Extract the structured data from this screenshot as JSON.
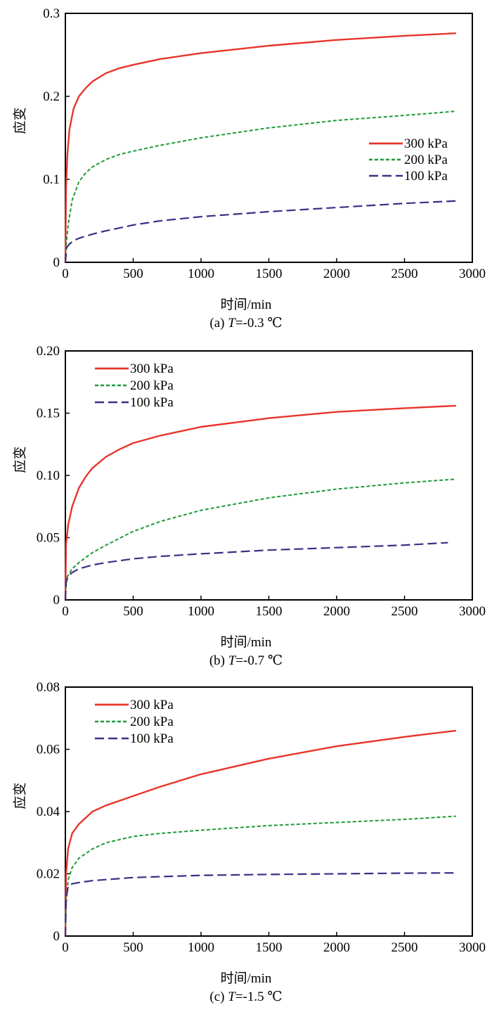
{
  "chart_data": [
    {
      "type": "line",
      "panel_id": "a",
      "caption_prefix": "(a) ",
      "caption_var": "T",
      "caption_suffix": "=-0.3 ℃",
      "xlabel": "时间/min",
      "ylabel": "应变",
      "xlim": [
        0,
        3000
      ],
      "ylim": [
        0,
        0.3
      ],
      "xticks": [
        "0",
        "500",
        "1000",
        "1500",
        "2000",
        "2500",
        "3000"
      ],
      "yticks": [
        "0",
        "0.1",
        "0.2",
        "0.3"
      ],
      "legend_position": "middle-right",
      "series": [
        {
          "name": "300 kPa",
          "color": "#e8352b",
          "dash": "solid",
          "x": [
            0,
            5,
            15,
            30,
            60,
            100,
            150,
            200,
            300,
            400,
            500,
            700,
            1000,
            1500,
            2000,
            2500,
            2880
          ],
          "y": [
            0,
            0.09,
            0.13,
            0.16,
            0.185,
            0.2,
            0.21,
            0.218,
            0.228,
            0.234,
            0.238,
            0.245,
            0.252,
            0.261,
            0.268,
            0.273,
            0.276
          ]
        },
        {
          "name": "200 kPa",
          "color": "#1f9a3a",
          "dash": "short",
          "x": [
            0,
            5,
            20,
            50,
            100,
            150,
            200,
            300,
            400,
            500,
            700,
            1000,
            1500,
            2000,
            2500,
            2880
          ],
          "y": [
            0,
            0.02,
            0.045,
            0.075,
            0.097,
            0.108,
            0.115,
            0.124,
            0.13,
            0.134,
            0.141,
            0.15,
            0.162,
            0.171,
            0.177,
            0.182
          ]
        },
        {
          "name": "100 kPa",
          "color": "#3a2f85",
          "dash": "long",
          "x": [
            0,
            10,
            30,
            60,
            100,
            200,
            300,
            500,
            700,
            1000,
            1500,
            2000,
            2500,
            2880
          ],
          "y": [
            0,
            0.018,
            0.022,
            0.026,
            0.029,
            0.034,
            0.038,
            0.045,
            0.05,
            0.055,
            0.061,
            0.066,
            0.071,
            0.074
          ]
        }
      ]
    },
    {
      "type": "line",
      "panel_id": "b",
      "caption_prefix": "(b) ",
      "caption_var": "T",
      "caption_suffix": "=-0.7 ℃",
      "xlabel": "时间/min",
      "ylabel": "应变",
      "xlim": [
        0,
        3000
      ],
      "ylim": [
        0,
        0.2
      ],
      "xticks": [
        "0",
        "500",
        "1000",
        "1500",
        "2000",
        "2500",
        "3000"
      ],
      "yticks": [
        "0",
        "0.05",
        "0.10",
        "0.15",
        "0.20"
      ],
      "legend_position": "top-left",
      "series": [
        {
          "name": "300 kPa",
          "color": "#e8352b",
          "dash": "solid",
          "x": [
            0,
            5,
            20,
            50,
            100,
            150,
            200,
            300,
            400,
            500,
            700,
            1000,
            1500,
            2000,
            2500,
            2880
          ],
          "y": [
            0,
            0.045,
            0.06,
            0.075,
            0.09,
            0.099,
            0.106,
            0.115,
            0.121,
            0.126,
            0.132,
            0.139,
            0.146,
            0.151,
            0.154,
            0.156
          ]
        },
        {
          "name": "200 kPa",
          "color": "#1f9a3a",
          "dash": "short",
          "x": [
            0,
            10,
            50,
            100,
            200,
            300,
            500,
            700,
            1000,
            1500,
            2000,
            2500,
            2880
          ],
          "y": [
            0,
            0.018,
            0.025,
            0.03,
            0.038,
            0.044,
            0.055,
            0.063,
            0.072,
            0.082,
            0.089,
            0.094,
            0.097
          ]
        },
        {
          "name": "100 kPa",
          "color": "#3a2f85",
          "dash": "long",
          "x": [
            0,
            5,
            20,
            50,
            100,
            200,
            300,
            500,
            700,
            1000,
            1500,
            2000,
            2500,
            2820
          ],
          "y": [
            0,
            0.014,
            0.019,
            0.022,
            0.025,
            0.028,
            0.03,
            0.033,
            0.035,
            0.037,
            0.04,
            0.042,
            0.044,
            0.046
          ]
        }
      ]
    },
    {
      "type": "line",
      "panel_id": "c",
      "caption_prefix": "(c) ",
      "caption_var": "T",
      "caption_suffix": "=-1.5 ℃",
      "xlabel": "时间/min",
      "ylabel": "应变",
      "xlim": [
        0,
        3000
      ],
      "ylim": [
        0,
        0.08
      ],
      "xticks": [
        "0",
        "500",
        "1000",
        "1500",
        "2000",
        "2500",
        "3000"
      ],
      "yticks": [
        "0",
        "0.02",
        "0.04",
        "0.06",
        "0.08"
      ],
      "legend_position": "top-left",
      "series": [
        {
          "name": "300 kPa",
          "color": "#e8352b",
          "dash": "solid",
          "x": [
            0,
            5,
            20,
            50,
            100,
            200,
            300,
            500,
            700,
            1000,
            1500,
            2000,
            2500,
            2880
          ],
          "y": [
            0,
            0.02,
            0.028,
            0.033,
            0.036,
            0.04,
            0.042,
            0.045,
            0.048,
            0.052,
            0.057,
            0.061,
            0.064,
            0.066
          ]
        },
        {
          "name": "200 kPa",
          "color": "#1f9a3a",
          "dash": "short",
          "x": [
            0,
            5,
            20,
            50,
            100,
            200,
            300,
            500,
            700,
            1000,
            1500,
            2000,
            2500,
            2880
          ],
          "y": [
            0,
            0.01,
            0.018,
            0.022,
            0.025,
            0.028,
            0.03,
            0.032,
            0.033,
            0.034,
            0.0355,
            0.0365,
            0.0375,
            0.0385
          ]
        },
        {
          "name": "100 kPa",
          "color": "#3a2f85",
          "dash": "long",
          "x": [
            0,
            5,
            20,
            50,
            100,
            200,
            500,
            1000,
            1500,
            2000,
            2500,
            2880
          ],
          "y": [
            0,
            0.012,
            0.016,
            0.0168,
            0.0172,
            0.0178,
            0.0188,
            0.0195,
            0.0198,
            0.02,
            0.0202,
            0.0203
          ]
        }
      ]
    }
  ]
}
